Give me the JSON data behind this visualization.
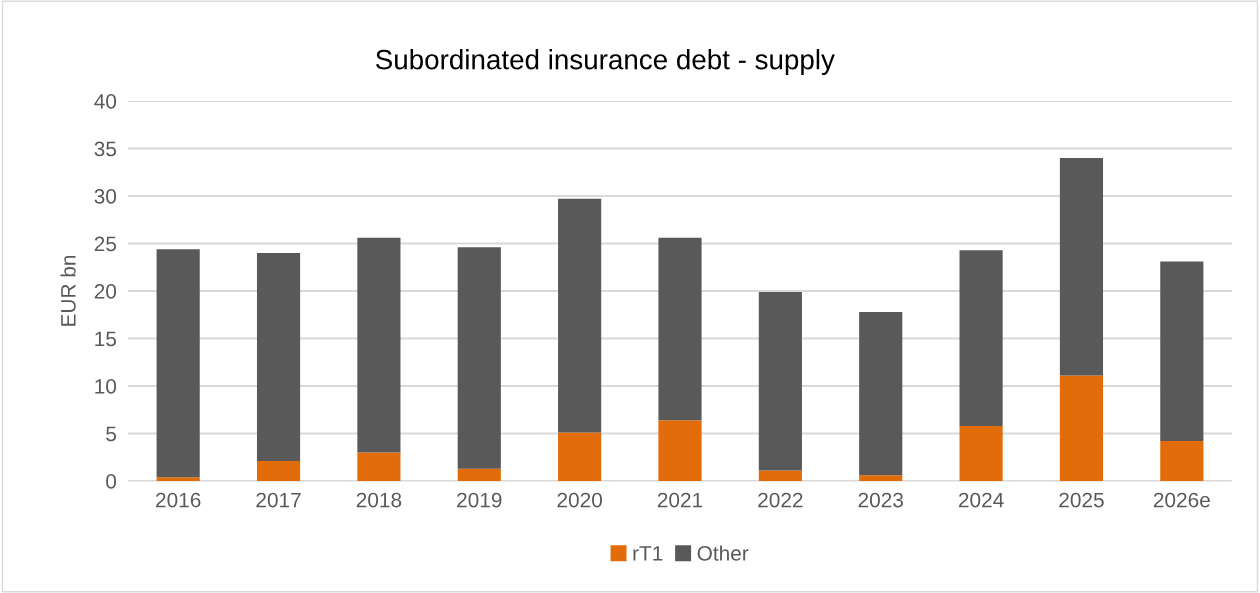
{
  "chart_data": {
    "type": "bar",
    "title": "Subordinated insurance debt - supply",
    "ylabel": "EUR bn",
    "categories": [
      "2016",
      "2017",
      "2018",
      "2019",
      "2020",
      "2021",
      "2022",
      "2023",
      "2024",
      "2025",
      "2026e"
    ],
    "series": [
      {
        "name": "rT1",
        "color": "#e36c0a",
        "values": [
          0.4,
          2.1,
          3.0,
          1.3,
          5.1,
          6.4,
          1.1,
          0.6,
          5.8,
          11.1,
          4.2
        ]
      },
      {
        "name": "Other",
        "color": "#595959",
        "values": [
          24.0,
          21.9,
          22.6,
          23.3,
          24.6,
          19.2,
          18.8,
          17.2,
          18.5,
          22.9,
          18.9
        ]
      }
    ],
    "stacked": true,
    "ylim": [
      0,
      40
    ],
    "yticks": [
      0,
      5,
      10,
      15,
      20,
      25,
      30,
      35,
      40
    ],
    "grid": "y",
    "legend": "bottom"
  }
}
